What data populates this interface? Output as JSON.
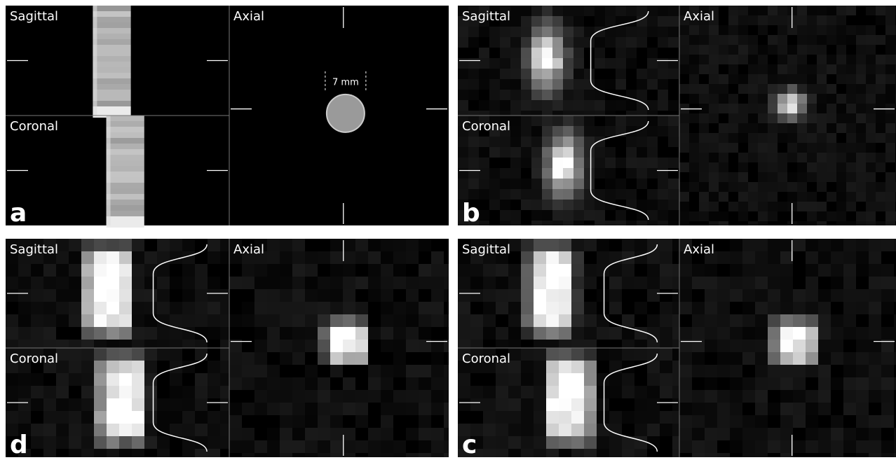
{
  "panels": [
    {
      "label": "a",
      "views": [
        {
          "label": "Sagittal"
        },
        {
          "label": "Coronal"
        },
        {
          "label": "Axial",
          "annotation": "7 mm"
        }
      ]
    },
    {
      "label": "b",
      "views": [
        {
          "label": "Sagittal"
        },
        {
          "label": "Coronal"
        },
        {
          "label": "Axial"
        }
      ]
    },
    {
      "label": "d",
      "views": [
        {
          "label": "Sagittal"
        },
        {
          "label": "Coronal"
        },
        {
          "label": "Axial"
        }
      ]
    },
    {
      "label": "c",
      "views": [
        {
          "label": "Sagittal"
        },
        {
          "label": "Coronal"
        },
        {
          "label": "Axial"
        }
      ]
    }
  ]
}
